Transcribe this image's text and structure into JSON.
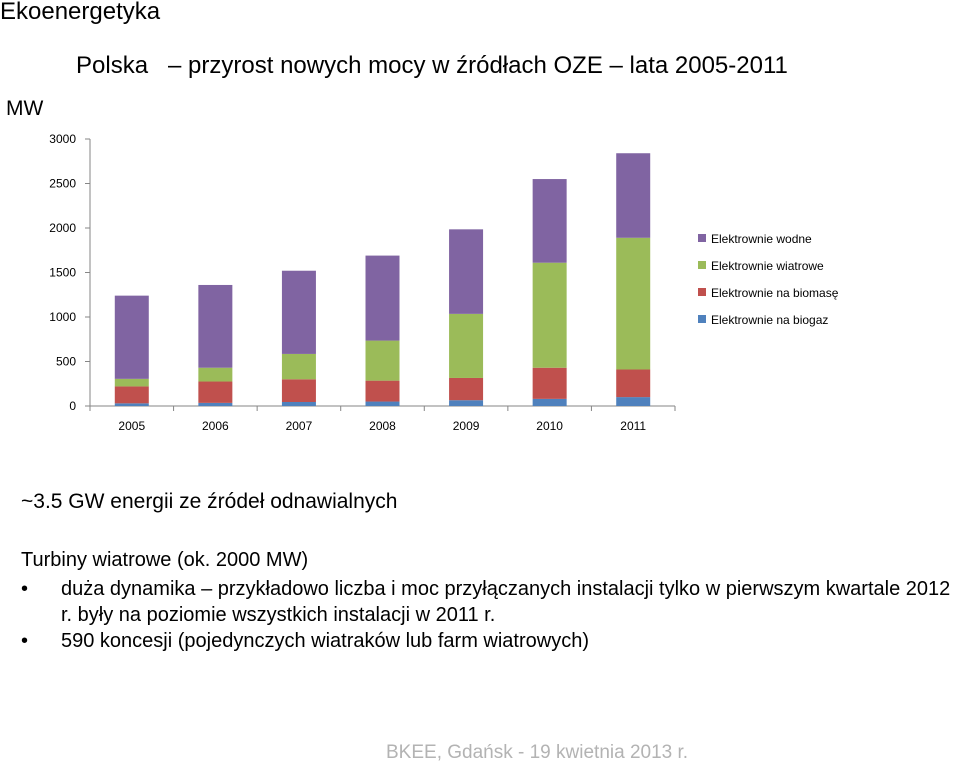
{
  "slide": {
    "title": "Ekoenergetyka",
    "chart_heading": "Polska   – przyrost nowych mocy w źródłach OZE – lata 2005-2011",
    "unit": "MW",
    "summary": "~3.5 GW energii ze źródeł odnawialnych",
    "section_heading": "Turbiny wiatrowe (ok. 2000 MW)",
    "bullets": [
      "duża dynamika – przykładowo liczba i moc przyłączanych instalacji tylko w pierwszym kwartale 2012 r. były na poziomie wszystkich instalacji w 2011 r.",
      "590 koncesji (pojedynczych wiatraków lub farm wiatrowych)"
    ],
    "bullet_symbol": "•",
    "footer": "BKEE, Gdańsk - 19 kwietnia 2013 r."
  },
  "chart_data": {
    "type": "bar",
    "stacked": true,
    "categories": [
      "2005",
      "2006",
      "2007",
      "2008",
      "2009",
      "2010",
      "2011"
    ],
    "ylim": [
      0,
      3000
    ],
    "yticks": [
      0,
      500,
      1000,
      1500,
      2000,
      2500,
      3000
    ],
    "grid": false,
    "legend_position": "right",
    "series": [
      {
        "name": "Elektrownie na biogaz",
        "color": "#4f81bd",
        "values": [
          30,
          35,
          45,
          50,
          65,
          80,
          100
        ]
      },
      {
        "name": "Elektrownie na biomasę",
        "color": "#c0504d",
        "values": [
          190,
          240,
          255,
          235,
          250,
          350,
          310
        ]
      },
      {
        "name": "Elektrownie wiatrowe",
        "color": "#9bbb59",
        "values": [
          85,
          155,
          285,
          450,
          720,
          1180,
          1480
        ]
      },
      {
        "name": "Elektrownie wodne",
        "color": "#8064a2",
        "values": [
          935,
          930,
          935,
          955,
          950,
          940,
          950
        ]
      }
    ],
    "legend_order": [
      "Elektrownie wodne",
      "Elektrownie wiatrowe",
      "Elektrownie na biomasę",
      "Elektrownie na biogaz"
    ]
  }
}
